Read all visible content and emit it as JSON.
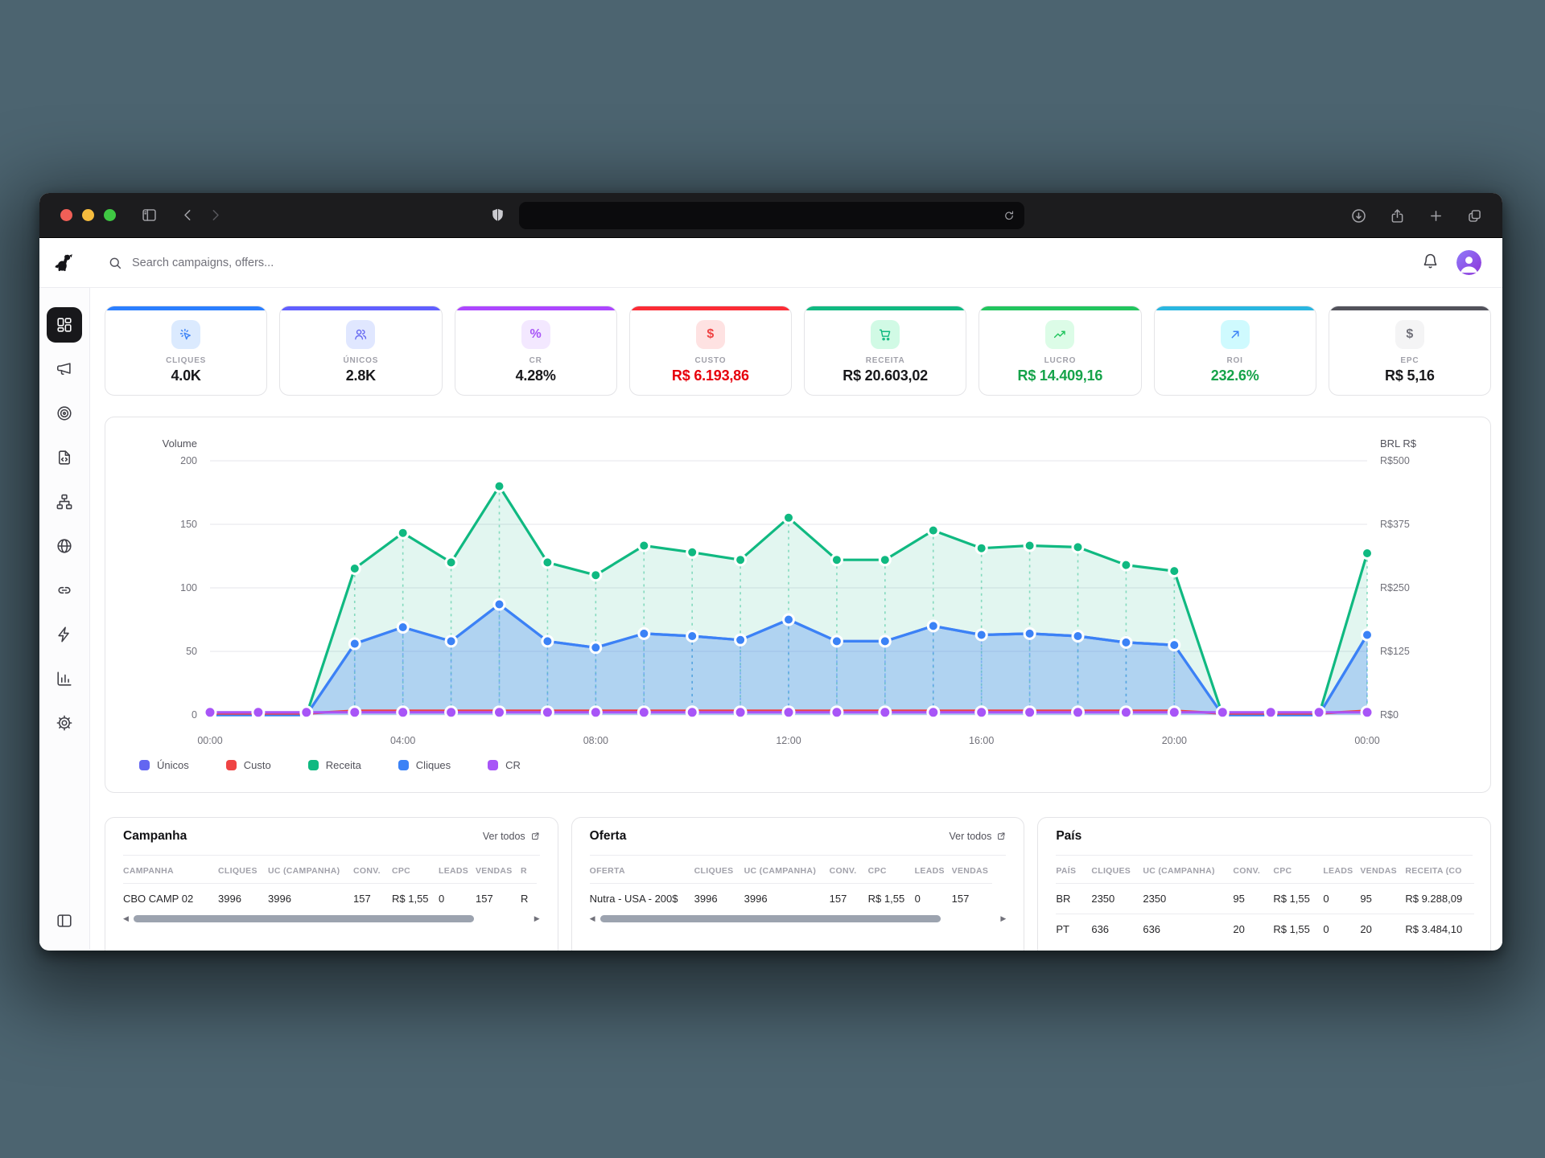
{
  "browser": {
    "url_value": "",
    "controls": [
      "sidebar-toggle",
      "back",
      "forward",
      "shield",
      "reload",
      "download",
      "share",
      "new-tab",
      "tab-overview"
    ]
  },
  "header": {
    "search_placeholder": "Search campaigns, offers..."
  },
  "sidebar": {
    "items": [
      {
        "name": "dashboard",
        "icon": "dashboard-grid",
        "active": true
      },
      {
        "name": "campaigns",
        "icon": "megaphone",
        "active": false
      },
      {
        "name": "offers",
        "icon": "target",
        "active": false
      },
      {
        "name": "landing-pages",
        "icon": "file-code",
        "active": false
      },
      {
        "name": "flows",
        "icon": "sitemap",
        "active": false
      },
      {
        "name": "domains",
        "icon": "globe",
        "active": false
      },
      {
        "name": "links",
        "icon": "link",
        "active": false
      },
      {
        "name": "automations",
        "icon": "zap",
        "active": false
      },
      {
        "name": "reports",
        "icon": "bar-chart",
        "active": false
      },
      {
        "name": "settings",
        "icon": "gear",
        "active": false
      }
    ],
    "footer_icon": "panel-left"
  },
  "stats": [
    {
      "label": "CLIQUES",
      "value": "4.0K",
      "accent": "#2b7fff",
      "icon": "cursor-click",
      "chip_bg": "#dbeafe",
      "icon_color": "#3b82f6",
      "value_color": "#18181b"
    },
    {
      "label": "ÚNICOS",
      "value": "2.8K",
      "accent": "#615fff",
      "icon": "users",
      "chip_bg": "#e0e7ff",
      "icon_color": "#6366f1",
      "value_color": "#18181b"
    },
    {
      "label": "CR",
      "value": "4.28%",
      "accent": "#ad46ff",
      "icon": "percent",
      "chip_bg": "#f3e8ff",
      "icon_color": "#a855f7",
      "value_color": "#18181b"
    },
    {
      "label": "CUSTO",
      "value": "R$ 6.193,86",
      "accent": "#fb2c36",
      "icon": "dollar",
      "chip_bg": "#fee2e2",
      "icon_color": "#ef4444",
      "value_color": "#e7000b"
    },
    {
      "label": "RECEITA",
      "value": "R$ 20.603,02",
      "accent": "#10b981",
      "icon": "cart",
      "chip_bg": "#d1fae5",
      "icon_color": "#10b981",
      "value_color": "#18181b"
    },
    {
      "label": "LUCRO",
      "value": "R$ 14.409,16",
      "accent": "#22c55e",
      "icon": "trend-up",
      "chip_bg": "#dcfce7",
      "icon_color": "#22c55e",
      "value_color": "#16a34a"
    },
    {
      "label": "ROI",
      "value": "232.6%",
      "accent": "#2ab6e0",
      "icon": "arrow-up-right",
      "chip_bg": "#cffafe",
      "icon_color": "#3b82f6",
      "value_color": "#16a34a"
    },
    {
      "label": "EPC",
      "value": "R$ 5,16",
      "accent": "#52525b",
      "icon": "dollar",
      "chip_bg": "#f4f4f5",
      "icon_color": "#71717a",
      "value_color": "#18181b"
    }
  ],
  "chart_data": {
    "type": "area",
    "x": [
      "00:00",
      "01:00",
      "02:00",
      "03:00",
      "04:00",
      "05:00",
      "06:00",
      "07:00",
      "08:00",
      "09:00",
      "10:00",
      "11:00",
      "12:00",
      "13:00",
      "14:00",
      "15:00",
      "16:00",
      "17:00",
      "18:00",
      "19:00",
      "20:00",
      "21:00",
      "22:00",
      "23:00",
      "00:00"
    ],
    "label_every": 4,
    "axes": {
      "left": {
        "title": "Volume",
        "ticks": [
          0,
          50,
          100,
          150,
          200
        ],
        "max": 200
      },
      "right": {
        "title": "BRL R$",
        "ticks": [
          "R$0",
          "R$125",
          "R$250",
          "R$375",
          "R$500"
        ],
        "max": 500
      }
    },
    "grid": true,
    "legend_position": "bottom-left",
    "series": [
      {
        "name": "Únicos",
        "color": "#6366f1",
        "axis": "left",
        "fill": false,
        "markers": false,
        "note": "overlaps Cliques line",
        "values": [
          0,
          0,
          0,
          56,
          69,
          58,
          87,
          58,
          53,
          64,
          62,
          59,
          75,
          58,
          58,
          70,
          63,
          64,
          62,
          57,
          55,
          0,
          0,
          0,
          63
        ]
      },
      {
        "name": "Custo",
        "color": "#ef4444",
        "axis": "right",
        "fill": false,
        "markers": false,
        "values": [
          3,
          3,
          3,
          8,
          8,
          8,
          8,
          8,
          8,
          8,
          8,
          8,
          8,
          8,
          8,
          8,
          8,
          8,
          8,
          8,
          8,
          3,
          3,
          3,
          8
        ]
      },
      {
        "name": "Receita",
        "color": "#10b981",
        "axis": "right",
        "fill": true,
        "markers": true,
        "values": [
          0,
          0,
          0,
          288,
          358,
          300,
          450,
          300,
          275,
          333,
          320,
          305,
          388,
          305,
          305,
          363,
          328,
          333,
          330,
          295,
          283,
          0,
          0,
          0,
          318
        ]
      },
      {
        "name": "Cliques",
        "color": "#3b82f6",
        "axis": "left",
        "fill": true,
        "markers": true,
        "values": [
          0,
          0,
          0,
          56,
          69,
          58,
          87,
          58,
          53,
          64,
          62,
          59,
          75,
          58,
          58,
          70,
          63,
          64,
          62,
          57,
          55,
          0,
          0,
          0,
          63
        ]
      },
      {
        "name": "CR",
        "color": "#a855f7",
        "axis": "left",
        "fill": false,
        "markers": true,
        "values": [
          2,
          2,
          2,
          2,
          2,
          2,
          2,
          2,
          2,
          2,
          2,
          2,
          2,
          2,
          2,
          2,
          2,
          2,
          2,
          2,
          2,
          2,
          2,
          2,
          2
        ]
      }
    ]
  },
  "tables": [
    {
      "title": "Campanha",
      "link_label": "Ver todos",
      "has_link": true,
      "has_scrollbar": true,
      "headers": [
        "CAMPANHA",
        "CLIQUES",
        "UC (CAMPANHA)",
        "CONV.",
        "CPC",
        "LEADS",
        "VENDAS",
        "R"
      ],
      "rows": [
        [
          "CBO CAMP 02",
          "3996",
          "3996",
          "157",
          "R$ 1,55",
          "0",
          "157",
          "R"
        ]
      ]
    },
    {
      "title": "Oferta",
      "link_label": "Ver todos",
      "has_link": true,
      "has_scrollbar": true,
      "headers": [
        "OFERTA",
        "CLIQUES",
        "UC (CAMPANHA)",
        "CONV.",
        "CPC",
        "LEADS",
        "VENDAS"
      ],
      "rows": [
        [
          "Nutra - USA - 200$",
          "3996",
          "3996",
          "157",
          "R$ 1,55",
          "0",
          "157"
        ]
      ]
    },
    {
      "title": "País",
      "link_label": "",
      "has_link": false,
      "has_scrollbar": false,
      "headers": [
        "PAÍS",
        "CLIQUES",
        "UC (CAMPANHA)",
        "CONV.",
        "CPC",
        "LEADS",
        "VENDAS",
        "RECEITA (CO"
      ],
      "rows": [
        [
          "BR",
          "2350",
          "2350",
          "95",
          "R$ 1,55",
          "0",
          "95",
          "R$ 9.288,09"
        ],
        [
          "PT",
          "636",
          "636",
          "20",
          "R$ 1,55",
          "0",
          "20",
          "R$ 3.484,10"
        ]
      ]
    }
  ]
}
